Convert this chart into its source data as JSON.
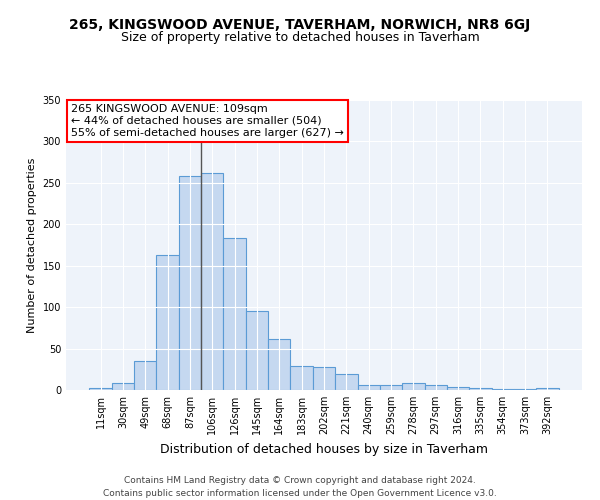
{
  "title": "265, KINGSWOOD AVENUE, TAVERHAM, NORWICH, NR8 6GJ",
  "subtitle": "Size of property relative to detached houses in Taverham",
  "xlabel": "Distribution of detached houses by size in Taverham",
  "ylabel": "Number of detached properties",
  "categories": [
    "11sqm",
    "30sqm",
    "49sqm",
    "68sqm",
    "87sqm",
    "106sqm",
    "126sqm",
    "145sqm",
    "164sqm",
    "183sqm",
    "202sqm",
    "221sqm",
    "240sqm",
    "259sqm",
    "278sqm",
    "297sqm",
    "316sqm",
    "335sqm",
    "354sqm",
    "373sqm",
    "392sqm"
  ],
  "values": [
    2,
    9,
    35,
    163,
    258,
    262,
    184,
    95,
    62,
    29,
    28,
    19,
    6,
    6,
    8,
    6,
    4,
    3,
    1,
    1,
    3
  ],
  "bar_color": "#c5d8f0",
  "bar_edge_color": "#5b9bd5",
  "highlight_index": 5,
  "highlight_line_color": "#555555",
  "annotation_line1": "265 KINGSWOOD AVENUE: 109sqm",
  "annotation_line2": "← 44% of detached houses are smaller (504)",
  "annotation_line3": "55% of semi-detached houses are larger (627) →",
  "annotation_box_color": "white",
  "annotation_box_edge": "red",
  "ylim": [
    0,
    350
  ],
  "yticks": [
    0,
    50,
    100,
    150,
    200,
    250,
    300,
    350
  ],
  "bg_color": "#eef3fa",
  "footer": "Contains HM Land Registry data © Crown copyright and database right 2024.\nContains public sector information licensed under the Open Government Licence v3.0.",
  "title_fontsize": 10,
  "subtitle_fontsize": 9,
  "ylabel_fontsize": 8,
  "xlabel_fontsize": 9,
  "tick_fontsize": 7,
  "footer_fontsize": 6.5,
  "annotation_fontsize": 8
}
